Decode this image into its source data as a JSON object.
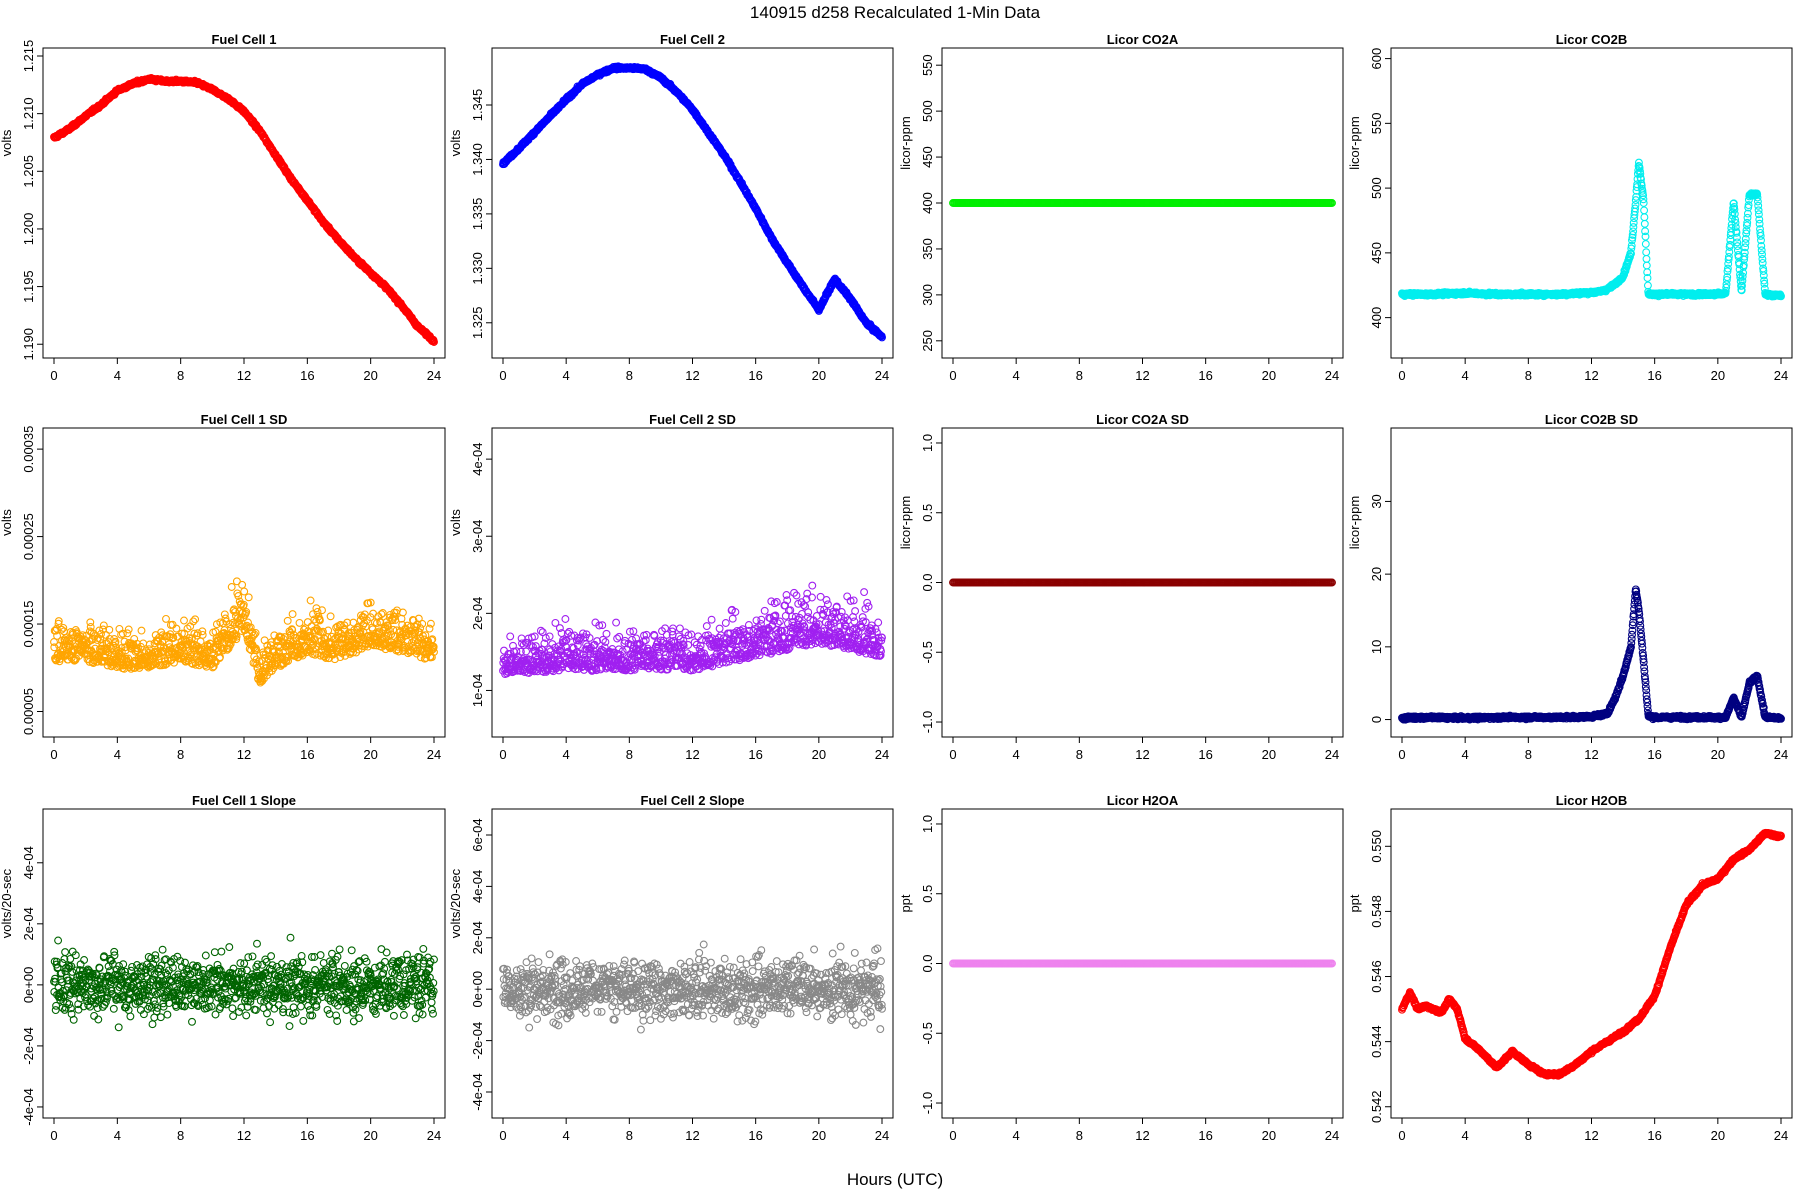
{
  "figure": {
    "title": "140915   d258   Recalculated 1-Min Data",
    "xlabel": "Hours (UTC)"
  },
  "chart_data": [
    {
      "type": "scatter",
      "title": "Fuel Cell 1",
      "ylabel": "volts",
      "color": "#ff0000",
      "xlim": [
        0,
        24
      ],
      "ylim": [
        1.1895,
        1.215
      ],
      "xticks": [
        "0",
        "4",
        "8",
        "12",
        "16",
        "20",
        "24"
      ],
      "yticks": [
        1.19,
        1.195,
        1.2,
        1.205,
        1.21,
        1.215
      ],
      "ytick_labels": [
        "1.190",
        "1.195",
        "1.200",
        "1.205",
        "1.210",
        "1.215"
      ],
      "pattern": "curve",
      "series": [
        {
          "x": [
            0,
            1,
            2,
            3,
            4,
            5,
            6,
            7,
            8,
            9,
            10,
            11,
            12,
            13,
            14,
            15,
            16,
            17,
            18,
            19,
            20,
            21,
            22,
            23,
            24
          ],
          "y": [
            1.2079,
            1.2087,
            1.2098,
            1.2108,
            1.212,
            1.2126,
            1.213,
            1.2128,
            1.2128,
            1.2127,
            1.2121,
            1.2113,
            1.2102,
            1.2085,
            1.2064,
            1.2043,
            1.2025,
            1.2006,
            1.199,
            1.1975,
            1.1962,
            1.1949,
            1.1933,
            1.1915,
            1.1903
          ]
        }
      ]
    },
    {
      "type": "scatter",
      "title": "Fuel Cell 2",
      "ylabel": "volts",
      "color": "#0000ff",
      "xlim": [
        0,
        24
      ],
      "ylim": [
        1.3225,
        1.3495
      ],
      "xticks": [
        "0",
        "4",
        "8",
        "12",
        "16",
        "20",
        "24"
      ],
      "yticks": [
        1.325,
        1.33,
        1.335,
        1.34,
        1.345
      ],
      "ytick_labels": [
        "1.325",
        "1.330",
        "1.335",
        "1.340",
        "1.345"
      ],
      "pattern": "curve",
      "series": [
        {
          "x": [
            0,
            1,
            2,
            3,
            4,
            5,
            6,
            7,
            8,
            9,
            10,
            11,
            12,
            13,
            14,
            15,
            16,
            17,
            18,
            19,
            20,
            21,
            22,
            23,
            24
          ],
          "y": [
            1.3396,
            1.341,
            1.3425,
            1.344,
            1.3455,
            1.3469,
            1.3478,
            1.3484,
            1.3484,
            1.3483,
            1.3475,
            1.3462,
            1.3446,
            1.3425,
            1.3404,
            1.338,
            1.3355,
            1.3328,
            1.3305,
            1.3283,
            1.3262,
            1.329,
            1.3272,
            1.325,
            1.3237
          ]
        }
      ]
    },
    {
      "type": "scatter",
      "title": "Licor CO2A",
      "ylabel": "licor-ppm",
      "color": "#00ee00",
      "xlim": [
        0,
        24
      ],
      "ylim": [
        240,
        560
      ],
      "xticks": [
        "0",
        "4",
        "8",
        "12",
        "16",
        "20",
        "24"
      ],
      "yticks": [
        250,
        300,
        350,
        400,
        450,
        500,
        550
      ],
      "ytick_labels": [
        "250",
        "300",
        "350",
        "400",
        "450",
        "500",
        "550"
      ],
      "pattern": "constant",
      "series": [
        {
          "x": [
            0,
            24
          ],
          "y": [
            400,
            400
          ]
        }
      ]
    },
    {
      "type": "scatter",
      "title": "Licor CO2B",
      "ylabel": "licor-ppm",
      "color": "#00eeee",
      "xlim": [
        0,
        24
      ],
      "ylim": [
        375,
        602
      ],
      "xticks": [
        "0",
        "4",
        "8",
        "12",
        "16",
        "20",
        "24"
      ],
      "yticks": [
        400,
        450,
        500,
        550,
        600
      ],
      "ytick_labels": [
        "400",
        "450",
        "500",
        "550",
        "600"
      ],
      "pattern": "curve",
      "series": [
        {
          "x": [
            0,
            2,
            4,
            6,
            8,
            10,
            11.5,
            12.5,
            13,
            13.5,
            14,
            14.5,
            14.8,
            15,
            15.3,
            15.6,
            16,
            18,
            20,
            20.5,
            21,
            21.5,
            22,
            22.5,
            23,
            24
          ],
          "y": [
            418,
            418,
            419,
            418,
            418,
            418,
            419,
            420,
            422,
            426,
            432,
            450,
            490,
            520,
            490,
            418,
            418,
            418,
            418,
            419,
            490,
            420,
            495,
            495,
            418,
            417
          ]
        }
      ]
    },
    {
      "type": "scatter",
      "title": "Fuel Cell 1 SD",
      "ylabel": "volts",
      "color": "#ffa500",
      "xlim": [
        0,
        24
      ],
      "ylim": [
        3e-05,
        0.000365
      ],
      "xticks": [
        "0",
        "4",
        "8",
        "12",
        "16",
        "20",
        "24"
      ],
      "yticks": [
        5e-05,
        0.00015,
        0.00025,
        0.00035
      ],
      "ytick_labels": [
        "0.00005",
        "0.00015",
        "0.00025",
        "0.00035"
      ],
      "pattern": "noise",
      "series": [
        {
          "x": [
            0,
            2,
            4,
            6,
            8,
            10,
            12,
            13,
            14,
            16,
            18,
            20,
            22,
            24
          ],
          "y": [
            0.00012,
            0.00012,
            0.00011,
            0.00011,
            0.00012,
            0.00011,
            0.00016,
            9e-05,
            0.00011,
            0.00013,
            0.00012,
            0.00014,
            0.00013,
            0.00012
          ]
        }
      ]
    },
    {
      "type": "scatter",
      "title": "Fuel Cell 2 SD",
      "ylabel": "volts",
      "color": "#a020f0",
      "xlim": [
        0,
        24
      ],
      "ylim": [
        5e-05,
        0.00043
      ],
      "xticks": [
        "0",
        "4",
        "8",
        "12",
        "16",
        "20",
        "24"
      ],
      "yticks": [
        0.0001,
        0.0002,
        0.0003,
        0.0004
      ],
      "ytick_labels": [
        "1e-04",
        "2e-04",
        "3e-04",
        "4e-04"
      ],
      "pattern": "noise",
      "series": [
        {
          "x": [
            0,
            4,
            8,
            12,
            16,
            20,
            24
          ],
          "y": [
            0.000135,
            0.00014,
            0.00014,
            0.00014,
            0.00016,
            0.00018,
            0.00016
          ]
        }
      ]
    },
    {
      "type": "scatter",
      "title": "Licor CO2A SD",
      "ylabel": "licor-ppm",
      "color": "#8b0000",
      "xlim": [
        0,
        24
      ],
      "ylim": [
        -1.05,
        1.05
      ],
      "xticks": [
        "0",
        "4",
        "8",
        "12",
        "16",
        "20",
        "24"
      ],
      "yticks": [
        -1.0,
        -0.5,
        0.0,
        0.5,
        1.0
      ],
      "ytick_labels": [
        "-1.0",
        "-0.5",
        "0.0",
        "0.5",
        "1.0"
      ],
      "pattern": "constant",
      "series": [
        {
          "x": [
            0,
            24
          ],
          "y": [
            0,
            0
          ]
        }
      ]
    },
    {
      "type": "scatter",
      "title": "Licor CO2B SD",
      "ylabel": "licor-ppm",
      "color": "#000080",
      "xlim": [
        0,
        24
      ],
      "ylim": [
        -1.3,
        39
      ],
      "xticks": [
        "0",
        "4",
        "8",
        "12",
        "16",
        "20",
        "24"
      ],
      "yticks": [
        0,
        10,
        20,
        30
      ],
      "ytick_labels": [
        "0",
        "10",
        "20",
        "30"
      ],
      "pattern": "curve",
      "series": [
        {
          "x": [
            0,
            2,
            4,
            6,
            8,
            10,
            12,
            13,
            13.5,
            14,
            14.5,
            14.8,
            15,
            15.3,
            15.6,
            16,
            18,
            20,
            20.5,
            21,
            21.5,
            22,
            22.5,
            23,
            24
          ],
          "y": [
            0.2,
            0.3,
            0.2,
            0.3,
            0.3,
            0.3,
            0.4,
            0.8,
            3,
            6,
            10,
            18,
            15,
            8,
            0.5,
            0.3,
            0.3,
            0.3,
            0.3,
            3,
            0.3,
            5,
            6,
            0.3,
            0.2
          ]
        }
      ]
    },
    {
      "type": "scatter",
      "title": "Fuel Cell 1 Slope",
      "ylabel": "volts/20-sec",
      "color": "#006400",
      "xlim": [
        0,
        24
      ],
      "ylim": [
        -0.00041,
        0.00055
      ],
      "xticks": [
        "0",
        "4",
        "8",
        "12",
        "16",
        "20",
        "24"
      ],
      "yticks": [
        -0.0004,
        -0.0002,
        0,
        0.0002,
        0.0004
      ],
      "ytick_labels": [
        "-4e-04",
        "-2e-04",
        "0e+00",
        "2e-04",
        "4e-04"
      ],
      "pattern": "noise",
      "series": [
        {
          "x": [
            0,
            24
          ],
          "y": [
            0,
            0
          ]
        }
      ]
    },
    {
      "type": "scatter",
      "title": "Fuel Cell 2 Slope",
      "ylabel": "volts/20-sec",
      "color": "#888888",
      "xlim": [
        0,
        24
      ],
      "ylim": [
        -0.00047,
        0.00067
      ],
      "xticks": [
        "0",
        "4",
        "8",
        "12",
        "16",
        "20",
        "24"
      ],
      "yticks": [
        -0.0004,
        -0.0002,
        0,
        0.0002,
        0.0004,
        0.0006
      ],
      "ytick_labels": [
        "-4e-04",
        "-2e-04",
        "0e+00",
        "2e-04",
        "4e-04",
        "6e-04"
      ],
      "pattern": "noise",
      "series": [
        {
          "x": [
            0,
            24
          ],
          "y": [
            0,
            0
          ]
        }
      ]
    },
    {
      "type": "scatter",
      "title": "Licor H2OA",
      "ylabel": "ppt",
      "color": "#ee82ee",
      "xlim": [
        0,
        24
      ],
      "ylim": [
        -1.05,
        1.05
      ],
      "xticks": [
        "0",
        "4",
        "8",
        "12",
        "16",
        "20",
        "24"
      ],
      "yticks": [
        -1.0,
        -0.5,
        0.0,
        0.5,
        1.0
      ],
      "ytick_labels": [
        "-1.0",
        "-0.5",
        "0.0",
        "0.5",
        "1.0"
      ],
      "pattern": "constant",
      "series": [
        {
          "x": [
            0,
            24
          ],
          "y": [
            0,
            0
          ]
        }
      ]
    },
    {
      "type": "scatter",
      "title": "Licor H2OB",
      "ylabel": "ppt",
      "color": "#ff0000",
      "xlim": [
        0,
        24
      ],
      "ylim": [
        0.5419,
        0.5509
      ],
      "xticks": [
        "0",
        "4",
        "8",
        "12",
        "16",
        "20",
        "24"
      ],
      "yticks": [
        0.542,
        0.544,
        0.546,
        0.548,
        0.55
      ],
      "ytick_labels": [
        "0.542",
        "0.544",
        "0.546",
        "0.548",
        "0.550"
      ],
      "pattern": "curve",
      "series": [
        {
          "x": [
            0,
            0.5,
            1,
            1.5,
            2,
            2.5,
            3,
            3.5,
            4,
            5,
            6,
            7,
            8,
            9,
            10,
            11,
            12,
            13,
            14,
            15,
            16,
            17,
            18,
            19,
            20,
            21,
            22,
            23,
            24
          ],
          "y": [
            0.545,
            0.5455,
            0.545,
            0.5451,
            0.545,
            0.5449,
            0.5453,
            0.545,
            0.5441,
            0.5437,
            0.5432,
            0.5437,
            0.5433,
            0.543,
            0.543,
            0.5433,
            0.5437,
            0.544,
            0.5443,
            0.5447,
            0.5454,
            0.5469,
            0.5482,
            0.5488,
            0.549,
            0.5496,
            0.5499,
            0.5504,
            0.5503
          ]
        }
      ]
    }
  ]
}
